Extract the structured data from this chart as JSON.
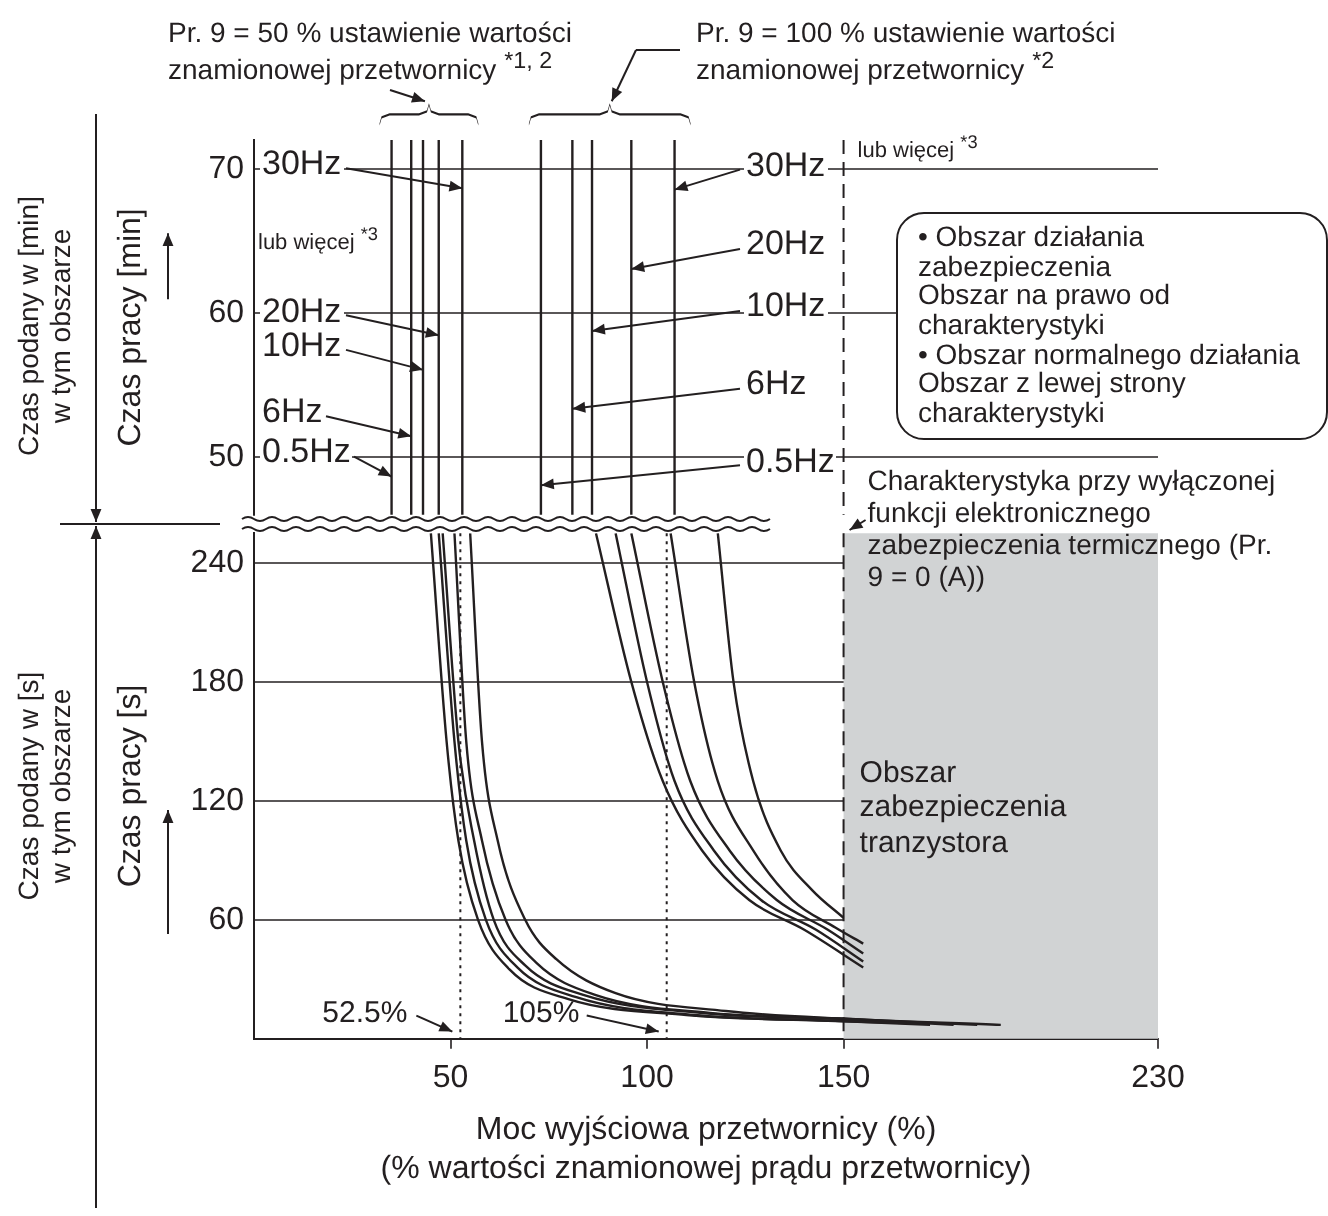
{
  "chart_data": [
    {
      "type": "line",
      "ylabel": "Czas pracy [min]",
      "xlim": [
        0,
        230
      ],
      "ylim": [
        46,
        72
      ],
      "yticks": [
        50,
        60,
        70
      ],
      "tick_labels": "y",
      "grid": "y",
      "ref_lines": [
        {
          "axis": "x",
          "value": 35,
          "line_style": "solid",
          "color": "#231f20"
        },
        {
          "axis": "x",
          "value": 40,
          "line_style": "solid",
          "color": "#231f20"
        },
        {
          "axis": "x",
          "value": 43,
          "line_style": "solid",
          "color": "#231f20"
        },
        {
          "axis": "x",
          "value": 47,
          "line_style": "solid",
          "color": "#231f20"
        },
        {
          "axis": "x",
          "value": 53,
          "line_style": "solid",
          "color": "#231f20"
        },
        {
          "axis": "x",
          "value": 73,
          "line_style": "solid",
          "color": "#231f20"
        },
        {
          "axis": "x",
          "value": 81,
          "line_style": "solid",
          "color": "#231f20"
        },
        {
          "axis": "x",
          "value": 86,
          "line_style": "solid",
          "color": "#231f20"
        },
        {
          "axis": "x",
          "value": 96,
          "line_style": "solid",
          "color": "#231f20"
        },
        {
          "axis": "x",
          "value": 107,
          "line_style": "solid",
          "color": "#231f20"
        },
        {
          "axis": "x",
          "value": 150,
          "line_style": "dashed",
          "color": "#231f20"
        }
      ],
      "annotations": [
        "Pr. 9 = 50 % ustawienie wartości znamionowej przetwornicy $^{*1, 2}$",
        "Pr. 9 = 100 % ustawienie wartości znamionowej przetwornicy $^{*2}$",
        "lub więcej $^{*3}$",
        "lub więcej $^{*3}$",
        "Czas podany w [min]\nw tym obszarze",
        "• Obszar działania zabezpieczenia\nObszar na prawo od charakterystyki\n• Obszar normalnego działania\nObszar z lewej strony charakterystyki",
        {
          "text": "30Hz",
          "x": 53,
          "y": 68.6
        },
        {
          "text": "20Hz",
          "x": 47,
          "y": 58.4
        },
        {
          "text": "10Hz",
          "x": 43,
          "y": 56
        },
        {
          "text": "6Hz",
          "x": 40,
          "y": 51.4
        },
        {
          "text": "0.5Hz",
          "x": 35,
          "y": 48.6
        },
        {
          "text": "30Hz",
          "x": 107,
          "y": 68.5
        },
        {
          "text": "20Hz",
          "x": 96,
          "y": 63
        },
        {
          "text": "10Hz",
          "x": 86,
          "y": 58.7
        },
        {
          "text": "6Hz",
          "x": 81,
          "y": 53.3
        },
        {
          "text": "0.5Hz",
          "x": 73,
          "y": 48
        }
      ]
    },
    {
      "type": "line",
      "xlabel": "Moc wyjściowa przetwornicy (%)\n(% wartości znamionowej prądu przetwornicy)",
      "ylabel": "Czas pracy [s]",
      "xlim": [
        0,
        230
      ],
      "xticks": [
        50,
        100,
        150,
        230
      ],
      "ylim": [
        0,
        255
      ],
      "yticks": [
        60,
        120,
        180,
        240
      ],
      "grid": "y",
      "marker": "none",
      "line_style": "solid",
      "series": [
        {
          "color": "#231f20",
          "x": [
            45,
            49,
            52,
            57,
            65,
            80,
            110,
            148,
            166
          ],
          "values": [
            255,
            150,
            100,
            60,
            35,
            20,
            12,
            9,
            8
          ]
        },
        {
          "color": "#231f20",
          "x": [
            47,
            51,
            54,
            59,
            67,
            82,
            112,
            149,
            172
          ],
          "values": [
            255,
            150,
            100,
            60,
            36,
            21,
            12,
            9,
            7
          ]
        },
        {
          "color": "#231f20",
          "x": [
            48,
            52,
            56,
            61,
            69,
            84,
            114,
            150,
            178
          ],
          "values": [
            255,
            150,
            100,
            60,
            37,
            22,
            13,
            10,
            7
          ]
        },
        {
          "color": "#231f20",
          "x": [
            51,
            54,
            58,
            64,
            72,
            87,
            116,
            151,
            184
          ],
          "values": [
            255,
            150,
            100,
            60,
            38,
            22,
            13,
            10,
            7
          ]
        },
        {
          "color": "#231f20",
          "x": [
            55,
            58,
            62,
            69,
            77,
            92,
            120,
            152,
            190
          ],
          "values": [
            255,
            150,
            100,
            60,
            40,
            23,
            14,
            10,
            7
          ]
        },
        {
          "color": "#231f20",
          "x": [
            87,
            96,
            104,
            114,
            126,
            140,
            155
          ],
          "values": [
            255,
            180,
            130,
            95,
            70,
            55,
            36
          ]
        },
        {
          "color": "#231f20",
          "x": [
            92,
            100,
            107,
            117,
            129,
            143,
            155
          ],
          "values": [
            255,
            180,
            130,
            95,
            70,
            55,
            39
          ]
        },
        {
          "color": "#231f20",
          "x": [
            96,
            104,
            111,
            121,
            133,
            146,
            155
          ],
          "values": [
            255,
            180,
            130,
            95,
            70,
            55,
            43
          ]
        },
        {
          "color": "#231f20",
          "x": [
            106,
            112,
            118,
            127,
            137,
            148,
            155
          ],
          "values": [
            255,
            180,
            130,
            95,
            70,
            56,
            48
          ]
        },
        {
          "color": "#231f20",
          "x": [
            118,
            122,
            127,
            134,
            142,
            150
          ],
          "values": [
            255,
            180,
            130,
            95,
            75,
            61
          ]
        }
      ],
      "ref_lines": [
        {
          "axis": "x",
          "value": 150,
          "line_style": "dashed",
          "color": "#231f20"
        },
        {
          "axis": "x",
          "value": 52.5,
          "label": "52.5%",
          "line_style": "dotted",
          "color": "#231f20"
        },
        {
          "axis": "x",
          "value": 105,
          "label": "105%",
          "line_style": "dotted",
          "color": "#231f20"
        }
      ],
      "bands": [
        {
          "axis": "x",
          "from": 150,
          "to": 230,
          "label": "Obszar zabezpieczenia tranzystora",
          "color": "#d1d3d4"
        }
      ],
      "annotations": [
        "Charakterystyka przy wyłączonej funkcji elektronicznego zabezpieczenia termicznego (Pr. 9 = 0 (A))",
        "Czas podany w [s]\nw tym obszarze"
      ]
    }
  ]
}
